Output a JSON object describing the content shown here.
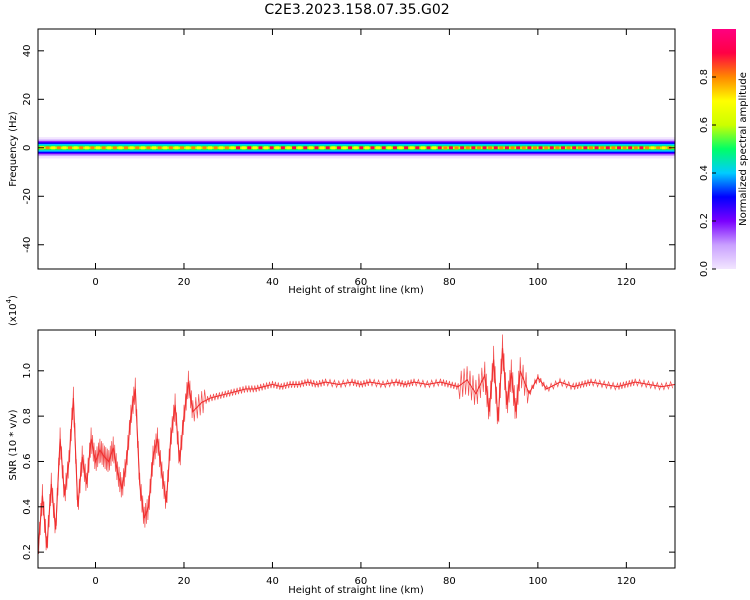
{
  "title": "C2E3.2023.158.07.35.G02",
  "chart_data": [
    {
      "type": "heatmap",
      "xlabel": "Height of straight line (km)",
      "ylabel": "Frequency (Hz)",
      "xlim": [
        -13,
        131
      ],
      "ylim": [
        -50,
        49
      ],
      "xticks": [
        0,
        20,
        40,
        60,
        80,
        100,
        120
      ],
      "yticks": [
        -40,
        -20,
        0,
        20,
        40
      ],
      "xtick_labels": [
        "0",
        "20",
        "40",
        "60",
        "80",
        "100",
        "120"
      ],
      "ytick_labels": [
        "-40",
        "-20",
        "0",
        "20",
        "40"
      ],
      "band_center_hz": 0,
      "band_halfwidth_hz": 4,
      "description_of_values": "energy concentrated in a narrow band near 0 Hz across all heights",
      "colorbar": {
        "label": "Normalized spectral amplitude",
        "range": [
          0,
          1
        ],
        "ticks": [
          0.0,
          0.2,
          0.4,
          0.6,
          0.8
        ],
        "tick_labels": [
          "0.0",
          "0.2",
          "0.4",
          "0.6",
          "0.8"
        ],
        "colormap": [
          "#f2e6ff",
          "#c9a0ff",
          "#7a00ff",
          "#0000ff",
          "#00ccff",
          "#00ff66",
          "#ccff00",
          "#ffff00",
          "#ff8800",
          "#ff0044",
          "#ff0080"
        ]
      }
    },
    {
      "type": "line",
      "xlabel": "Height of straight line (km)",
      "ylabel": "SNR (10 * v/v)",
      "exponent_label": "(x10",
      "exponent_power": "4",
      "exponent_close": ")",
      "xlim": [
        -13,
        131
      ],
      "ylim": [
        0.13,
        1.18
      ],
      "xticks": [
        0,
        20,
        40,
        60,
        80,
        100,
        120
      ],
      "yticks": [
        0.2,
        0.4,
        0.6,
        0.8,
        1.0
      ],
      "xtick_labels": [
        "0",
        "20",
        "40",
        "60",
        "80",
        "100",
        "120"
      ],
      "ytick_labels": [
        "0.2",
        "0.4",
        "0.6",
        "0.8",
        "1.0"
      ],
      "line_color": "#f03030",
      "series": [
        {
          "x": [
            -13,
            -12,
            -11,
            -10,
            -9,
            -8,
            -7,
            -6,
            -5,
            -4,
            -3,
            -2,
            -1,
            0,
            1,
            2,
            3,
            4,
            5,
            6,
            7,
            8,
            9,
            10,
            11,
            12,
            13,
            14,
            15,
            16,
            17,
            18,
            19,
            20,
            21,
            22,
            24,
            26,
            28,
            30,
            32,
            34,
            36,
            38,
            40,
            42,
            44,
            46,
            48,
            50,
            52,
            55,
            58,
            60,
            62,
            65,
            68,
            70,
            72,
            75,
            78,
            80,
            82,
            84,
            86,
            88,
            89,
            90,
            91,
            92,
            93,
            94,
            95,
            96,
            98,
            100,
            102,
            105,
            108,
            110,
            112,
            115,
            118,
            120,
            122,
            125,
            128,
            131
          ],
          "y": [
            0.2,
            0.45,
            0.22,
            0.5,
            0.3,
            0.7,
            0.45,
            0.6,
            0.88,
            0.4,
            0.62,
            0.5,
            0.7,
            0.6,
            0.65,
            0.62,
            0.6,
            0.66,
            0.55,
            0.48,
            0.6,
            0.8,
            0.92,
            0.5,
            0.35,
            0.4,
            0.62,
            0.7,
            0.55,
            0.42,
            0.7,
            0.85,
            0.6,
            0.8,
            0.95,
            0.82,
            0.86,
            0.88,
            0.89,
            0.9,
            0.91,
            0.92,
            0.92,
            0.93,
            0.94,
            0.93,
            0.94,
            0.94,
            0.95,
            0.94,
            0.95,
            0.94,
            0.95,
            0.94,
            0.95,
            0.94,
            0.95,
            0.94,
            0.95,
            0.94,
            0.95,
            0.94,
            0.93,
            0.96,
            0.9,
            0.98,
            0.82,
            1.05,
            0.78,
            1.1,
            0.85,
            0.99,
            0.82,
            1.0,
            0.9,
            0.97,
            0.92,
            0.95,
            0.93,
            0.94,
            0.95,
            0.94,
            0.93,
            0.94,
            0.95,
            0.94,
            0.93,
            0.94
          ]
        }
      ]
    }
  ]
}
